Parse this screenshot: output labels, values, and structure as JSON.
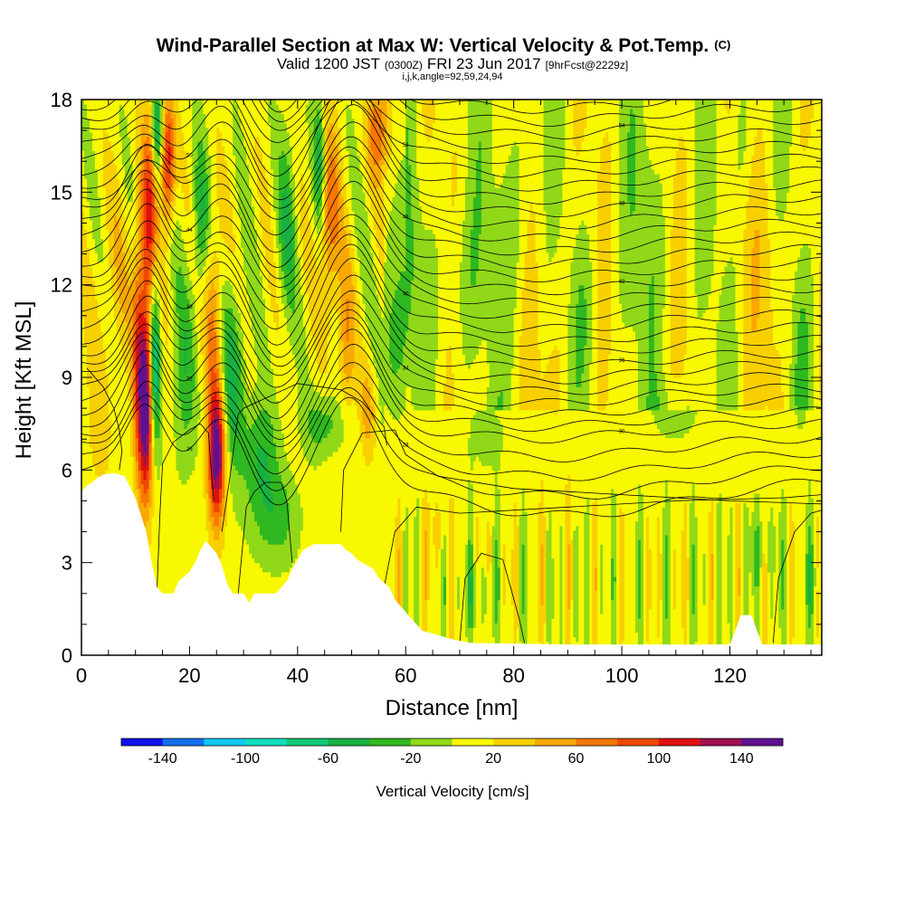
{
  "chart_data": {
    "type": "heatmap",
    "title": "Wind-Parallel Section at Max W: Vertical Velocity & Pot.Temp.",
    "title_suffix": "(C)",
    "subtitle": {
      "part1": "Valid 1200 JST",
      "part2": "(0300Z)",
      "part3": "FRI 23 Jun 2017",
      "part4": "[9hrFcst@2229z]"
    },
    "subtitle2": "i,j,k,angle=92,59,24,94",
    "xlabel": "Distance [nm]",
    "ylabel": "Height [Kft MSL]",
    "xlim": [
      0,
      137
    ],
    "ylim": [
      0,
      18
    ],
    "x_ticks": [
      0,
      20,
      40,
      60,
      80,
      100,
      120
    ],
    "y_ticks": [
      0,
      3,
      6,
      9,
      12,
      15,
      18
    ],
    "colorbar": {
      "label": "Vertical Velocity [cm/s]",
      "tick_values": [
        -140,
        -100,
        -60,
        -20,
        20,
        60,
        100,
        140
      ],
      "tick_labels": [
        "-140",
        "-100",
        "-60",
        "-20",
        "20",
        "60",
        "100",
        "140"
      ],
      "boundaries": [
        -160,
        -140,
        -120,
        -100,
        -80,
        -60,
        -40,
        -20,
        0,
        20,
        40,
        60,
        80,
        100,
        120,
        140,
        160
      ],
      "colors": [
        "#1010f0",
        "#1070f0",
        "#10c8f0",
        "#10e0c0",
        "#10c878",
        "#18b040",
        "#30b820",
        "#90d818",
        "#f8f800",
        "#f8d000",
        "#f8a800",
        "#f87800",
        "#f04800",
        "#e01010",
        "#a01050",
        "#601090"
      ]
    },
    "terrain_kft": [
      [
        0,
        5.3
      ],
      [
        1,
        5.5
      ],
      [
        2,
        5.6
      ],
      [
        3,
        5.75
      ],
      [
        4,
        5.85
      ],
      [
        6,
        5.9
      ],
      [
        8,
        5.8
      ],
      [
        10,
        5.1
      ],
      [
        12,
        4.0
      ],
      [
        13,
        3.0
      ],
      [
        14,
        2.2
      ],
      [
        15,
        2.0
      ],
      [
        17,
        2.0
      ],
      [
        18,
        2.4
      ],
      [
        20,
        2.7
      ],
      [
        21,
        3.0
      ],
      [
        22,
        3.4
      ],
      [
        23,
        3.7
      ],
      [
        25,
        3.3
      ],
      [
        26,
        2.9
      ],
      [
        27,
        2.3
      ],
      [
        28,
        2.0
      ],
      [
        30,
        2.0
      ],
      [
        31,
        1.7
      ],
      [
        32,
        2.0
      ],
      [
        34,
        2.0
      ],
      [
        36,
        2.0
      ],
      [
        37,
        2.2
      ],
      [
        38,
        2.4
      ],
      [
        39,
        2.8
      ],
      [
        40,
        3.1
      ],
      [
        41,
        3.4
      ],
      [
        43,
        3.6
      ],
      [
        46,
        3.6
      ],
      [
        48,
        3.6
      ],
      [
        49,
        3.4
      ],
      [
        50,
        3.3
      ],
      [
        51,
        3.1
      ],
      [
        52,
        3.0
      ],
      [
        54,
        2.8
      ],
      [
        55,
        2.5
      ],
      [
        57,
        2.2
      ],
      [
        58,
        1.8
      ],
      [
        59,
        1.6
      ],
      [
        61,
        1.2
      ],
      [
        62,
        1.0
      ],
      [
        63,
        0.8
      ],
      [
        64,
        0.75
      ],
      [
        65,
        0.7
      ],
      [
        67,
        0.6
      ],
      [
        69,
        0.5
      ],
      [
        72,
        0.4
      ],
      [
        90,
        0.35
      ],
      [
        100,
        0.35
      ],
      [
        110,
        0.35
      ],
      [
        120,
        0.35
      ],
      [
        121,
        0.8
      ],
      [
        122,
        1.3
      ],
      [
        124,
        1.3
      ],
      [
        125,
        0.8
      ],
      [
        126,
        0.35
      ],
      [
        137,
        0.35
      ]
    ],
    "theta_contours": {
      "count": 32,
      "levels_note": "potential temperature contours, labels shown on some lines",
      "labels": [
        "26",
        "28",
        "30",
        "32",
        "34",
        "36",
        "38",
        "40",
        "42",
        "44",
        "46",
        "48",
        "50",
        "52",
        "54",
        "56",
        "58"
      ]
    },
    "w_field_sources": [
      [
        12,
        8,
        150,
        1.4,
        3.0
      ],
      [
        12.5,
        14,
        90,
        1.5,
        3.5
      ],
      [
        10.5,
        10,
        70,
        1.2,
        4.0
      ],
      [
        25,
        6.5,
        150,
        1.6,
        2.2
      ],
      [
        24.5,
        11,
        60,
        1.6,
        3.0
      ],
      [
        16,
        16,
        110,
        1.3,
        2.0
      ],
      [
        13.5,
        9.5,
        -110,
        1.0,
        3.0
      ],
      [
        14,
        17,
        -80,
        1.0,
        1.5
      ],
      [
        19,
        9,
        -40,
        2.0,
        3.0
      ],
      [
        28,
        9,
        -60,
        2.2,
        3.0
      ],
      [
        33,
        6.5,
        -50,
        3.0,
        1.8
      ],
      [
        36,
        4.5,
        -40,
        4.0,
        1.5
      ],
      [
        22,
        14,
        -50,
        1.5,
        2.5
      ],
      [
        46,
        14,
        70,
        1.8,
        3.0
      ],
      [
        49,
        10,
        50,
        1.6,
        2.5
      ],
      [
        53,
        8,
        40,
        1.5,
        1.5
      ],
      [
        55,
        17,
        70,
        2.0,
        1.5
      ],
      [
        38,
        14,
        -40,
        1.8,
        3.0
      ],
      [
        44,
        16,
        -60,
        1.0,
        2.0
      ],
      [
        58,
        10,
        -30,
        2.5,
        2.0
      ],
      [
        45,
        7.5,
        -40,
        4.0,
        1.0
      ],
      [
        60,
        13,
        -25,
        3.0,
        3.0
      ],
      [
        70,
        12,
        -22,
        4.0,
        3.0
      ],
      [
        80,
        14,
        -22,
        4.0,
        4.0
      ],
      [
        93,
        11,
        -25,
        3.0,
        3.0
      ],
      [
        105,
        14,
        -22,
        3.0,
        4.0
      ],
      [
        75,
        7,
        -20,
        3.0,
        1.0
      ],
      [
        110,
        8,
        -20,
        4.0,
        1.0
      ],
      [
        88,
        10,
        15,
        5.0,
        5.0
      ],
      [
        128,
        12,
        20,
        4.0,
        4.0
      ],
      [
        6,
        12,
        20,
        4.0,
        3.0
      ],
      [
        3,
        7.5,
        20,
        2.5,
        2.5
      ],
      [
        133,
        10,
        -20,
        2.0,
        3.0
      ],
      [
        122,
        17,
        -20,
        2.0,
        2.0
      ],
      [
        135,
        2.5,
        -25,
        1.5,
        1.2
      ],
      [
        73,
        2,
        -25,
        3.0,
        1.0
      ],
      [
        66,
        4,
        20,
        2.5,
        1.2
      ],
      [
        126,
        3.5,
        -20,
        3.0,
        1.2
      ]
    ],
    "grid": false,
    "legend": "colorbar-bottom"
  }
}
